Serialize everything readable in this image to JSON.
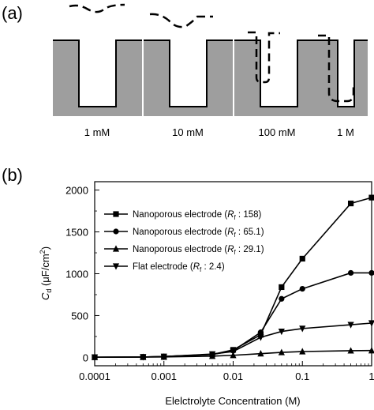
{
  "panel_a": {
    "label": "(a)",
    "concentrations": [
      "1 mM",
      "10 mM",
      "100 mM",
      "1 M"
    ]
  },
  "panel_b": {
    "label": "(b)"
  },
  "chart_data": {
    "type": "line",
    "xscale": "log",
    "xlim": [
      0.0001,
      1
    ],
    "ylim": [
      -100,
      2100
    ],
    "xticks": [
      "0.0001",
      "0.001",
      "0.01",
      "0.1",
      "1"
    ],
    "yticks": [
      "0",
      "500",
      "1000",
      "1500",
      "2000"
    ],
    "xlabel": "Elelctrolyte Concentration (M)",
    "ylabel": "Cd (μF/cm²)",
    "ylabel_parts": {
      "main": "C",
      "sub": "d",
      "rest": " (μF/cm",
      "sup": "2",
      "close": ")"
    },
    "legend_position": "top-left",
    "series": [
      {
        "name": "Nanoporous electrode (Rf : 158)",
        "name_parts": {
          "prefix": "Nanoporous electrode (",
          "R": "R",
          "sub": "f",
          "suffix": " : 158)"
        },
        "marker": "square",
        "x": [
          0.0001,
          0.0005,
          0.001,
          0.005,
          0.01,
          0.025,
          0.05,
          0.1,
          0.5,
          1
        ],
        "y": [
          2,
          5,
          10,
          35,
          90,
          270,
          840,
          1180,
          1840,
          1910
        ]
      },
      {
        "name": "Nanoporous electrode (Rf : 65.1)",
        "name_parts": {
          "prefix": "Nanoporous electrode (",
          "R": "R",
          "sub": "f",
          "suffix": " : 65.1)"
        },
        "marker": "circle",
        "x": [
          0.0001,
          0.0005,
          0.001,
          0.005,
          0.01,
          0.025,
          0.05,
          0.1,
          0.5,
          1
        ],
        "y": [
          2,
          5,
          10,
          35,
          80,
          300,
          700,
          820,
          1010,
          1010
        ]
      },
      {
        "name": "Nanoporous electrode (Rf : 29.1)",
        "name_parts": {
          "prefix": "Nanoporous electrode (",
          "R": "R",
          "sub": "f",
          "suffix": " : 29.1)"
        },
        "marker": "triangle-up",
        "x": [
          0.0001,
          0.0005,
          0.001,
          0.005,
          0.01,
          0.025,
          0.05,
          0.1,
          0.5,
          1
        ],
        "y": [
          2,
          3,
          5,
          15,
          25,
          45,
          60,
          70,
          80,
          82
        ]
      },
      {
        "name": "Flat electrode (Rf : 2.4)",
        "name_parts": {
          "prefix": "Flat electrode (",
          "R": "R",
          "sub": "f",
          "suffix": " : 2.4)"
        },
        "marker": "triangle-down",
        "x": [
          0.0001,
          0.0005,
          0.001,
          0.005,
          0.01,
          0.025,
          0.05,
          0.1,
          0.5,
          1
        ],
        "y": [
          2,
          5,
          10,
          40,
          70,
          240,
          310,
          345,
          390,
          410
        ]
      }
    ]
  }
}
